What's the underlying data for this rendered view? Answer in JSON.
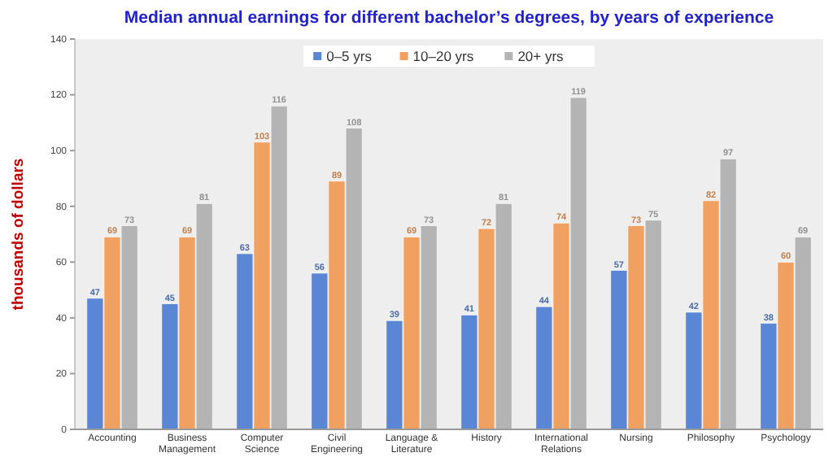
{
  "chart_data": {
    "type": "bar",
    "title": "Median annual earnings for different bachelor’s degrees, by years of experience",
    "ylabel": "thousands of dollars",
    "categories": [
      "Accounting",
      "Business Management",
      "Computer Science",
      "Civil Engineering",
      "Language & Literature",
      "History",
      "International Relations",
      "Nursing",
      "Philosophy",
      "Psychology"
    ],
    "series": [
      {
        "name": "0–5 yrs",
        "color": "#5b86d6",
        "values": [
          47,
          45,
          63,
          56,
          39,
          41,
          44,
          57,
          42,
          38
        ]
      },
      {
        "name": "10–20 yrs",
        "color": "#f0a060",
        "values": [
          69,
          69,
          103,
          89,
          69,
          72,
          74,
          73,
          82,
          60
        ]
      },
      {
        "name": "20+ yrs",
        "color": "#b4b4b4",
        "values": [
          73,
          81,
          116,
          108,
          73,
          81,
          119,
          75,
          97,
          69
        ]
      }
    ],
    "ylim": [
      0,
      140
    ],
    "yticks": [
      0,
      20,
      40,
      60,
      80,
      100,
      120,
      140
    ],
    "grid": false,
    "legend": "top",
    "data_labels": true
  }
}
